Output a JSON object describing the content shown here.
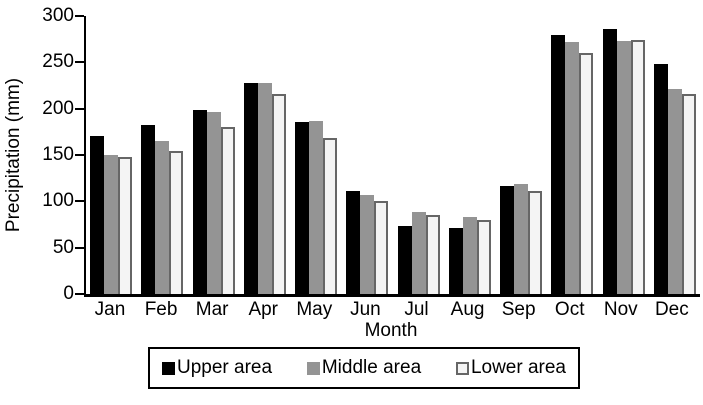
{
  "chart_data": {
    "type": "bar",
    "title": "",
    "xlabel": "Month",
    "ylabel": "Precipitation (mm)",
    "ylim": [
      0,
      300
    ],
    "yticks": [
      0,
      50,
      100,
      150,
      200,
      250,
      300
    ],
    "grid": false,
    "legend_position": "bottom",
    "categories": [
      "Jan",
      "Feb",
      "Mar",
      "Apr",
      "May",
      "Jun",
      "Jul",
      "Aug",
      "Sep",
      "Oct",
      "Nov",
      "Dec"
    ],
    "series": [
      {
        "name": "Upper area",
        "fill": "#000000",
        "border": "#000000",
        "values": [
          170,
          182,
          199,
          228,
          186,
          111,
          73,
          71,
          117,
          279,
          286,
          248
        ]
      },
      {
        "name": "Middle area",
        "fill": "#949494",
        "border": "#949494",
        "values": [
          150,
          165,
          196,
          228,
          187,
          107,
          88,
          83,
          119,
          272,
          273,
          221
        ]
      },
      {
        "name": "Lower area",
        "fill": "#f4f4f4",
        "border": "#666666",
        "values": [
          148,
          154,
          180,
          216,
          168,
          100,
          85,
          80,
          111,
          260,
          274,
          216
        ]
      }
    ]
  },
  "colors": {
    "axis": "#000000",
    "background": "#ffffff",
    "text": "#000000"
  }
}
